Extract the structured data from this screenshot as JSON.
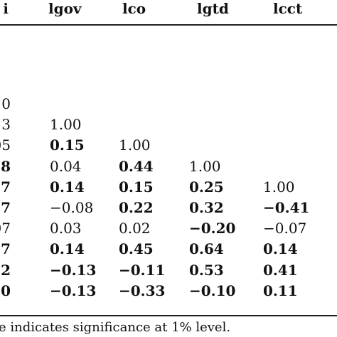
{
  "table": {
    "headers": [
      "i",
      "lgov",
      "lco",
      "lgtd",
      "lcct"
    ],
    "rows": [
      {
        "cells": [
          {
            "text": "0",
            "bold": false
          },
          null,
          null,
          null,
          null
        ]
      },
      {
        "cells": [
          {
            "text": "3",
            "bold": false
          },
          {
            "text": "1.00",
            "bold": false
          },
          null,
          null,
          null
        ]
      },
      {
        "cells": [
          {
            "text": "05",
            "bold": false
          },
          {
            "text": "0.15",
            "bold": true
          },
          {
            "text": "1.00",
            "bold": false
          },
          null,
          null
        ]
      },
      {
        "cells": [
          {
            "text": "8",
            "bold": true
          },
          {
            "text": "0.04",
            "bold": false
          },
          {
            "text": "0.44",
            "bold": true
          },
          {
            "text": "1.00",
            "bold": false
          },
          null
        ]
      },
      {
        "cells": [
          {
            "text": "17",
            "bold": true
          },
          {
            "text": "0.14",
            "bold": true
          },
          {
            "text": "0.15",
            "bold": true
          },
          {
            "text": "0.25",
            "bold": true
          },
          {
            "text": "1.00",
            "bold": false
          }
        ]
      },
      {
        "cells": [
          {
            "text": "7",
            "bold": true
          },
          {
            "text": "−0.08",
            "bold": false
          },
          {
            "text": "0.22",
            "bold": true
          },
          {
            "text": "0.32",
            "bold": true
          },
          {
            "text": "−0.41",
            "bold": true
          }
        ]
      },
      {
        "cells": [
          {
            "text": "07",
            "bold": false
          },
          {
            "text": "0.03",
            "bold": false
          },
          {
            "text": "0.02",
            "bold": false
          },
          {
            "text": "−0.20",
            "bold": true
          },
          {
            "text": "−0.07",
            "bold": false
          }
        ]
      },
      {
        "cells": [
          {
            "text": "7",
            "bold": true
          },
          {
            "text": "0.14",
            "bold": true
          },
          {
            "text": "0.45",
            "bold": true
          },
          {
            "text": "0.64",
            "bold": true
          },
          {
            "text": "0.14",
            "bold": true
          }
        ]
      },
      {
        "cells": [
          {
            "text": "2",
            "bold": true
          },
          {
            "text": "−0.13",
            "bold": true
          },
          {
            "text": "−0.11",
            "bold": true
          },
          {
            "text": "0.53",
            "bold": true
          },
          {
            "text": "0.41",
            "bold": true
          }
        ]
      },
      {
        "cells": [
          {
            "text": "0",
            "bold": true
          },
          {
            "text": "−0.13",
            "bold": true
          },
          {
            "text": "−0.33",
            "bold": true
          },
          {
            "text": "−0.10",
            "bold": true
          },
          {
            "text": "0.11",
            "bold": true
          }
        ]
      }
    ]
  },
  "footnote": "e indicates significance at 1% level."
}
